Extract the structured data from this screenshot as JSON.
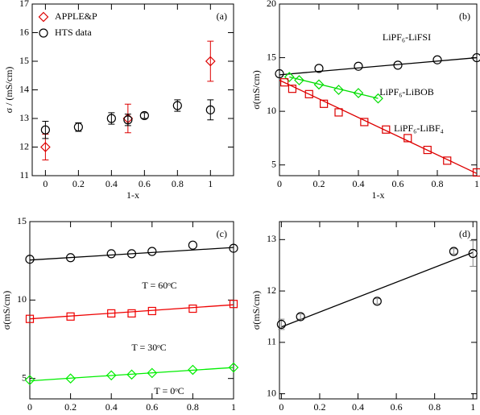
{
  "chart_data": [
    {
      "type": "scatter",
      "annotation": "(a)",
      "x_label": "1-x",
      "y_label": "σ / (mS/cm)",
      "xlim": [
        -0.08,
        1.14
      ],
      "ylim": [
        11,
        17
      ],
      "xticks": [
        0,
        0.2,
        0.4,
        0.6,
        0.8,
        1
      ],
      "yticks": [
        11,
        12,
        13,
        14,
        15,
        16,
        17
      ],
      "legend": "upper left",
      "series": [
        {
          "name": "APPLE&P",
          "color": "#dd0000",
          "marker": "diamond",
          "x": [
            0,
            0.5,
            1
          ],
          "values": [
            12.0,
            13.0,
            15.0
          ],
          "errors": [
            0.45,
            0.5,
            0.7
          ]
        },
        {
          "name": "HTS data",
          "color": "#000000",
          "marker": "circle",
          "x": [
            0,
            0.2,
            0.4,
            0.5,
            0.6,
            0.8,
            1
          ],
          "values": [
            12.6,
            12.7,
            13.0,
            12.95,
            13.1,
            13.45,
            13.3
          ],
          "errors": [
            0.3,
            0.15,
            0.2,
            0.2,
            0.1,
            0.2,
            0.35
          ]
        }
      ]
    },
    {
      "type": "scatter",
      "annotation": "(b)",
      "x_label": "1-x",
      "y_label": "σ(mS/cm)",
      "xlim": [
        0,
        1
      ],
      "ylim": [
        4,
        20
      ],
      "xticks": [
        0,
        0.2,
        0.4,
        0.6,
        0.8,
        1
      ],
      "yticks": [
        5,
        10,
        15,
        20
      ],
      "series": [
        {
          "name": "LiPF₆-LiFSI",
          "color": "#000000",
          "marker": "circle",
          "x": [
            0,
            0.2,
            0.4,
            0.6,
            0.8,
            1
          ],
          "values": [
            13.5,
            14.0,
            14.2,
            14.3,
            14.8,
            15.0
          ],
          "fit": {
            "x": [
              0,
              1
            ],
            "y": [
              13.4,
              15.0
            ]
          }
        },
        {
          "name": "LiPF₆-LiBOB",
          "color": "#00dd00",
          "marker": "diamond",
          "x": [
            0.05,
            0.1,
            0.2,
            0.3,
            0.4,
            0.5
          ],
          "values": [
            13.2,
            12.9,
            12.5,
            12.0,
            11.7,
            11.2
          ],
          "fit": {
            "x": [
              0.05,
              0.5
            ],
            "y": [
              13.2,
              11.2
            ]
          }
        },
        {
          "name": "LiPF₆-LiBF₄",
          "color": "#dd0000",
          "marker": "square",
          "x": [
            0.025,
            0.065,
            0.15,
            0.225,
            0.3,
            0.43,
            0.54,
            0.65,
            0.75,
            0.85,
            1
          ],
          "values": [
            12.7,
            12.1,
            11.6,
            10.7,
            9.9,
            9.0,
            8.3,
            7.5,
            6.4,
            5.4,
            4.3
          ],
          "fit": {
            "x": [
              0,
              1
            ],
            "y": [
              12.9,
              4.2
            ]
          }
        }
      ]
    },
    {
      "type": "scatter",
      "annotation": "(c)",
      "x_label": "1-x",
      "y_label": "σ(mS/cm)",
      "xlim": [
        0,
        1
      ],
      "ylim": [
        3.7,
        15
      ],
      "xticks": [
        0,
        0.2,
        0.4,
        0.6,
        0.8,
        1
      ],
      "yticks": [
        5,
        10,
        15
      ],
      "series": [
        {
          "name": "T = 60ᵒC",
          "color": "#000000",
          "marker": "circle",
          "x": [
            0,
            0.2,
            0.4,
            0.5,
            0.6,
            0.8,
            1
          ],
          "values": [
            12.6,
            12.7,
            12.95,
            12.95,
            13.1,
            13.5,
            13.3
          ],
          "fit": {
            "x": [
              0,
              1
            ],
            "y": [
              12.55,
              13.35
            ]
          }
        },
        {
          "name": "T = 30ᵒC",
          "color": "#ee0000",
          "marker": "square",
          "x": [
            0,
            0.2,
            0.4,
            0.5,
            0.6,
            0.8,
            1
          ],
          "values": [
            8.8,
            8.95,
            9.15,
            9.15,
            9.3,
            9.45,
            9.75
          ],
          "fit": {
            "x": [
              0,
              1
            ],
            "y": [
              8.8,
              9.7
            ]
          }
        },
        {
          "name": "T = 0ᵒC",
          "color": "#00ee00",
          "marker": "diamond",
          "x": [
            0,
            0.2,
            0.4,
            0.5,
            0.6,
            0.8,
            1
          ],
          "values": [
            4.9,
            5.0,
            5.2,
            5.25,
            5.35,
            5.55,
            5.7
          ],
          "fit": {
            "x": [
              0,
              1
            ],
            "y": [
              4.85,
              5.7
            ]
          }
        }
      ]
    },
    {
      "type": "scatter",
      "annotation": "(d)",
      "x_label": "1-x",
      "y_label": "σ(mS/cm)",
      "xlim": [
        -0.01,
        1.02
      ],
      "ylim": [
        9.9,
        13.35
      ],
      "xticks": [
        0,
        0.2,
        0.4,
        0.6,
        0.8,
        1
      ],
      "yticks": [
        10,
        11,
        12,
        13
      ],
      "series": [
        {
          "color": "#000000",
          "marker": "circle",
          "x": [
            0,
            0.1,
            0.5,
            0.9,
            1
          ],
          "values": [
            11.35,
            11.5,
            11.8,
            12.77,
            12.73
          ],
          "errors": [
            0.1,
            0.05,
            0.05,
            0.05,
            0.25
          ],
          "fit": {
            "x": [
              0,
              1
            ],
            "y": [
              11.3,
              12.75
            ]
          }
        }
      ]
    }
  ]
}
